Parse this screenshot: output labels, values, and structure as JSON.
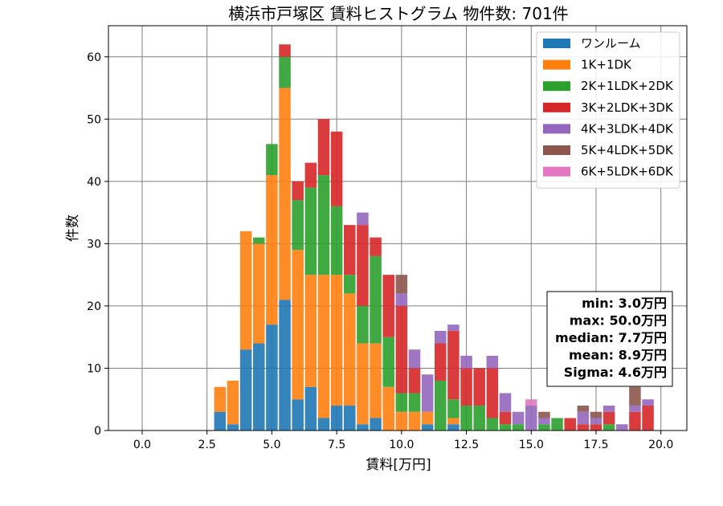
{
  "chart_data": {
    "type": "bar",
    "stacked": true,
    "title": "横浜市戸塚区 賃料ヒストグラム 物件数: 701件",
    "xlabel": "賃料[万円]",
    "ylabel": "件数",
    "xlim": [
      -1.3,
      21.0
    ],
    "ylim": [
      0,
      65
    ],
    "xticks": [
      0.0,
      2.5,
      5.0,
      7.5,
      10.0,
      12.5,
      15.0,
      17.5,
      20.0
    ],
    "xtick_labels": [
      "0.0",
      "2.5",
      "5.0",
      "7.5",
      "10.0",
      "12.5",
      "15.0",
      "17.5",
      "20.0"
    ],
    "yticks": [
      0,
      10,
      20,
      30,
      40,
      50,
      60
    ],
    "ytick_labels": [
      "0",
      "10",
      "20",
      "30",
      "40",
      "50",
      "60"
    ],
    "grid": true,
    "legend_position": "top-right",
    "bin_width": 0.5,
    "x": [
      3.0,
      3.5,
      4.0,
      4.5,
      5.0,
      5.5,
      6.0,
      6.5,
      7.0,
      7.5,
      8.0,
      8.5,
      9.0,
      9.5,
      10.0,
      10.5,
      11.0,
      11.5,
      12.0,
      12.5,
      13.0,
      13.5,
      14.0,
      14.5,
      15.0,
      15.5,
      16.0,
      16.5,
      17.0,
      17.5,
      18.0,
      18.5,
      19.0,
      19.5
    ],
    "series": [
      {
        "name": "ワンルーム",
        "color": "#1f77b4",
        "values": [
          3,
          1,
          13,
          14,
          17,
          21,
          5,
          7,
          2,
          4,
          4,
          1,
          2,
          0,
          0,
          0,
          1,
          0,
          1,
          0,
          0,
          0,
          0,
          0,
          0,
          0,
          0,
          0,
          0,
          0,
          0,
          0,
          0,
          0
        ]
      },
      {
        "name": "1K+1DK",
        "color": "#ff7f0e",
        "values": [
          4,
          7,
          19,
          16,
          24,
          34,
          24,
          18,
          23,
          21,
          18,
          13,
          12,
          7,
          3,
          3,
          2,
          0,
          1,
          0,
          0,
          0,
          0,
          0,
          0,
          0,
          0,
          0,
          0,
          0,
          0,
          0,
          0,
          0
        ]
      },
      {
        "name": "2K+1LDK+2DK",
        "color": "#2ca02c",
        "values": [
          0,
          0,
          0,
          1,
          5,
          5,
          8,
          14,
          16,
          11,
          3,
          6,
          14,
          8,
          3,
          3,
          0,
          8,
          3,
          4,
          4,
          2,
          1,
          1,
          0,
          1,
          2,
          0,
          0,
          0,
          1,
          0,
          0,
          0
        ]
      },
      {
        "name": "3K+2LDK+3DK",
        "color": "#d62728",
        "values": [
          0,
          0,
          0,
          0,
          0,
          2,
          3,
          4,
          9,
          12,
          8,
          13,
          3,
          10,
          14,
          4,
          0,
          6,
          11,
          6,
          6,
          8,
          2,
          0,
          0,
          0,
          0,
          2,
          1,
          1,
          2,
          0,
          3,
          4
        ]
      },
      {
        "name": "4K+3LDK+4DK",
        "color": "#9467bd",
        "values": [
          0,
          0,
          0,
          0,
          0,
          0,
          0,
          0,
          0,
          0,
          0,
          2,
          0,
          0,
          2,
          3,
          6,
          2,
          1,
          2,
          0,
          2,
          3,
          2,
          4,
          1,
          0,
          0,
          2,
          1,
          1,
          1,
          1,
          1
        ]
      },
      {
        "name": "5K+4LDK+5DK",
        "color": "#8c564b",
        "values": [
          0,
          0,
          0,
          0,
          0,
          0,
          0,
          0,
          0,
          0,
          0,
          0,
          0,
          0,
          3,
          0,
          0,
          0,
          0,
          0,
          0,
          0,
          0,
          0,
          0,
          1,
          0,
          0,
          1,
          1,
          0,
          0,
          3,
          0
        ]
      },
      {
        "name": "6K+5LDK+6DK",
        "color": "#e377c2",
        "values": [
          0,
          0,
          0,
          0,
          0,
          0,
          0,
          0,
          0,
          0,
          0,
          0,
          0,
          0,
          0,
          0,
          0,
          0,
          0,
          0,
          0,
          0,
          0,
          0,
          1,
          0,
          0,
          0,
          0,
          0,
          0,
          0,
          0,
          0
        ]
      }
    ],
    "stats": [
      "min: 3.0万円",
      "max: 50.0万円",
      "median: 7.7万円",
      "mean: 8.9万円",
      "Sigma: 4.6万円"
    ]
  }
}
